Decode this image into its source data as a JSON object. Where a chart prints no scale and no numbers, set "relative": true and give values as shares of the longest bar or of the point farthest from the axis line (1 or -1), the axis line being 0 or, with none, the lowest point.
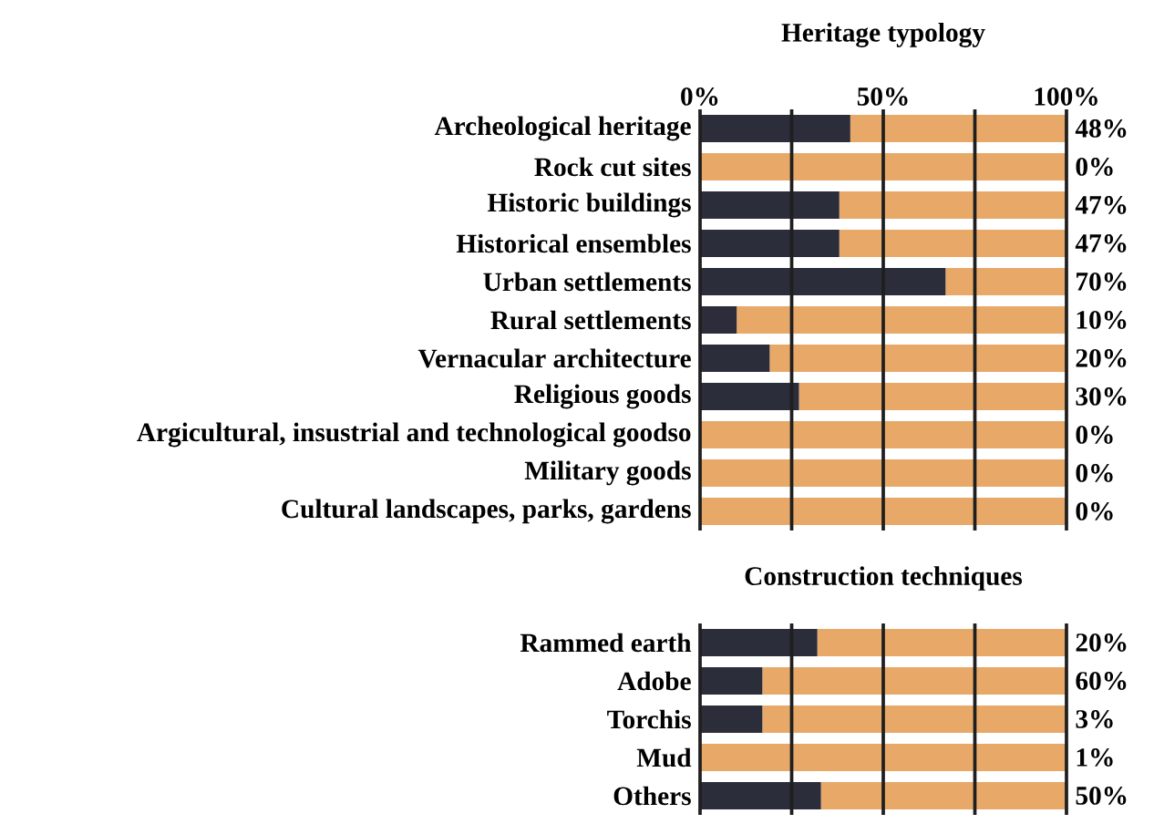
{
  "chart_data": [
    {
      "type": "bar",
      "orientation": "horizontal",
      "stacked": true,
      "title": "Heritage typology",
      "categories": [
        "Archeological heritage",
        "Rock cut sites",
        "Historic buildings",
        "Historical ensembles",
        "Urban settlements",
        "Rural settlements",
        "Vernacular architecture",
        "Religious goods",
        "Argicultural, insustrial and technological goodso",
        "Military goods",
        "Cultural landscapes, parks, gardens"
      ],
      "series": [
        {
          "color": "#2b2d3a",
          "values": [
            41,
            0,
            38,
            38,
            67,
            10,
            19,
            27,
            0,
            0,
            0
          ]
        },
        {
          "color": "#e8a868",
          "values": [
            59,
            100,
            62,
            62,
            33,
            90,
            81,
            73,
            100,
            100,
            100
          ]
        }
      ],
      "value_labels": [
        "48%",
        "0%",
        "47%",
        "47%",
        "70%",
        "10%",
        "20%",
        "30%",
        "0%",
        "0%",
        "0%"
      ],
      "xlim": [
        0,
        100
      ],
      "xticks": [
        {
          "value": 0,
          "label": "0%"
        },
        {
          "value": 25,
          "label": null
        },
        {
          "value": 50,
          "label": "50%"
        },
        {
          "value": 75,
          "label": null
        },
        {
          "value": 100,
          "label": "100%"
        }
      ],
      "grid": "x"
    },
    {
      "type": "bar",
      "orientation": "horizontal",
      "stacked": true,
      "title": "Construction techniques",
      "categories": [
        "Rammed earth",
        "Adobe",
        "Torchis",
        "Mud",
        "Others"
      ],
      "series": [
        {
          "color": "#2b2d3a",
          "values": [
            0.32,
            0.17,
            0.17,
            0,
            0.33
          ]
        },
        {
          "color": "#e8a868",
          "values": [
            0.68,
            0.83,
            0.83,
            1,
            0.67
          ]
        }
      ],
      "value_labels": [
        "20%",
        "60%",
        "3%",
        "1%",
        "50%"
      ],
      "relative": true,
      "grid": "x"
    }
  ]
}
